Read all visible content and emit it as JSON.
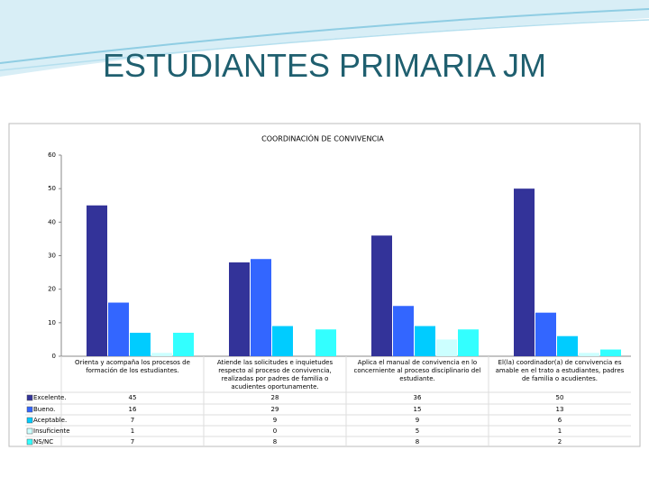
{
  "slide_title": "ESTUDIANTES PRIMARIA JM",
  "chart_data": {
    "type": "bar",
    "title": "COORDINACIÓN DE CONVIVENCIA",
    "categories": [
      "Orienta y acompaña los procesos de formación de los estudiantes.",
      "Atiende las solicitudes e inquietudes respecto al proceso de convivencia, realizadas por padres de familia o acudientes oportunamente.",
      "Aplica el manual de convivencia en lo concerniente al proceso disciplinario del estudiante.",
      "El(la) coordinador(a) de convivencia es amable en el trato a estudiantes, padres de familia o acudientes."
    ],
    "series": [
      {
        "name": "Excelente.",
        "color": "#333399",
        "values": [
          45,
          28,
          36,
          50
        ]
      },
      {
        "name": "Bueno.",
        "color": "#3366ff",
        "values": [
          16,
          29,
          15,
          13
        ]
      },
      {
        "name": "Aceptable.",
        "color": "#00ccff",
        "values": [
          7,
          9,
          9,
          6
        ]
      },
      {
        "name": "Insuficiente",
        "color": "#ccffff",
        "values": [
          1,
          0,
          5,
          1
        ]
      },
      {
        "name": "NS/NC",
        "color": "#33ffff",
        "values": [
          7,
          8,
          8,
          2
        ]
      }
    ],
    "ylim": [
      0,
      60
    ],
    "yticks": [
      0,
      10,
      20,
      30,
      40,
      50,
      60
    ],
    "grid": false
  }
}
